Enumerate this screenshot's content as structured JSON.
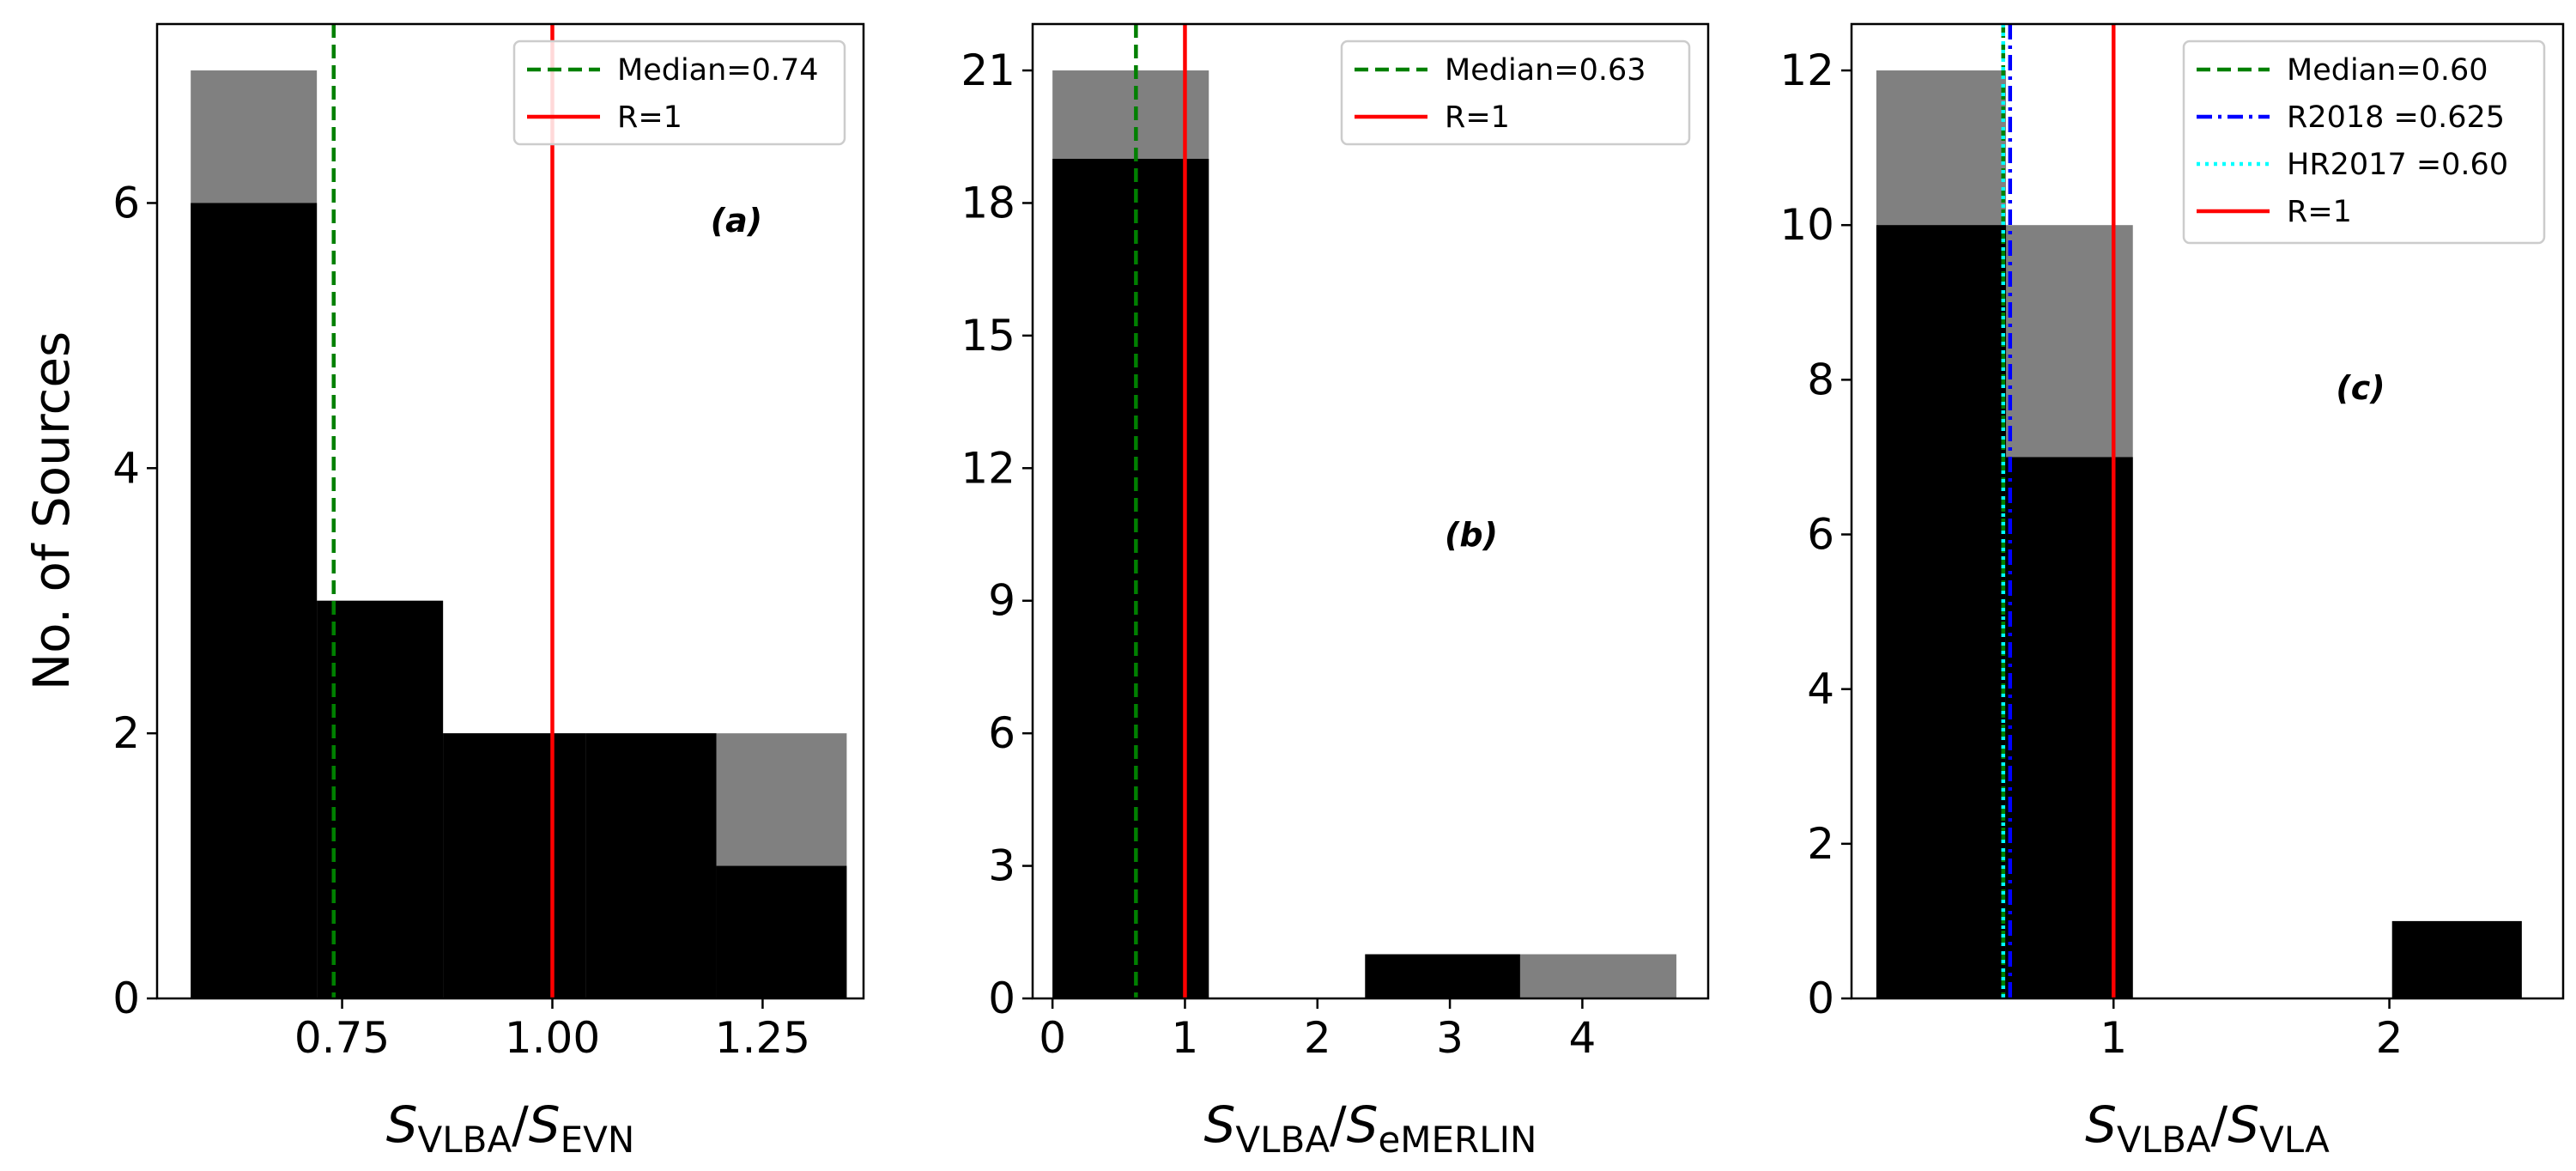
{
  "figure": {
    "ylabel": "No. of Sources"
  },
  "chart_data": [
    {
      "type": "bar",
      "panel_label": "(a)",
      "xlabel": {
        "main": "S",
        "sub1": "VLBA",
        "slash": "/",
        "main2": "S",
        "sub2": "EVN"
      },
      "xlim": [
        0.53,
        1.37
      ],
      "ylim": [
        0,
        7.35
      ],
      "xticks": [
        0.75,
        1.0,
        1.25
      ],
      "xtick_labels": [
        "0.75",
        "1.00",
        "1.25"
      ],
      "yticks": [
        0,
        2,
        4,
        6
      ],
      "ytick_labels": [
        "0",
        "2",
        "4",
        "6"
      ],
      "bins": [
        [
          0.57,
          0.72
        ],
        [
          0.72,
          0.87
        ],
        [
          0.87,
          1.04
        ],
        [
          1.04,
          1.195
        ],
        [
          1.195,
          1.35
        ]
      ],
      "series": [
        {
          "name": "",
          "color": "#808080",
          "values": [
            7,
            3,
            2,
            2,
            2
          ]
        },
        {
          "name": "",
          "color": "#000000",
          "values": [
            6,
            3,
            2,
            2,
            1
          ]
        }
      ],
      "vlines": [
        {
          "x": 0.74,
          "label": "Median=0.74",
          "color": "#008000",
          "style": "dashed"
        },
        {
          "x": 1.0,
          "label": "R=1",
          "color": "#ff0000",
          "style": "solid"
        }
      ],
      "legend": "top-right",
      "grid": false
    },
    {
      "type": "bar",
      "panel_label": "(b)",
      "xlabel": {
        "main": "S",
        "sub1": "VLBA",
        "slash": "/",
        "main2": "S",
        "sub2": "eMERLIN"
      },
      "xlim": [
        -0.15,
        4.95
      ],
      "ylim": [
        0,
        22.05
      ],
      "xticks": [
        0,
        1,
        2,
        3,
        4
      ],
      "xtick_labels": [
        "0",
        "1",
        "2",
        "3",
        "4"
      ],
      "yticks": [
        0,
        3,
        6,
        9,
        12,
        15,
        18,
        21
      ],
      "ytick_labels": [
        "0",
        "3",
        "6",
        "9",
        "12",
        "15",
        "18",
        "21"
      ],
      "bins": [
        [
          0.0,
          1.18
        ],
        [
          1.18,
          2.36
        ],
        [
          2.36,
          3.53
        ],
        [
          3.53,
          4.71
        ]
      ],
      "series": [
        {
          "name": "",
          "color": "#808080",
          "values": [
            21,
            0,
            1,
            1
          ]
        },
        {
          "name": "",
          "color": "#000000",
          "values": [
            19,
            0,
            1,
            0
          ]
        }
      ],
      "vlines": [
        {
          "x": 0.63,
          "label": "Median=0.63",
          "color": "#008000",
          "style": "dashed"
        },
        {
          "x": 1.0,
          "label": "R=1",
          "color": "#ff0000",
          "style": "solid"
        }
      ],
      "legend": "top-right",
      "grid": false
    },
    {
      "type": "bar",
      "panel_label": "(c)",
      "xlabel": {
        "main": "S",
        "sub1": "VLBA",
        "slash": "/",
        "main2": "S",
        "sub2": "VLA"
      },
      "xlim": [
        0.05,
        2.63
      ],
      "ylim": [
        0,
        12.6
      ],
      "xticks": [
        1,
        2
      ],
      "xtick_labels": [
        "1",
        "2"
      ],
      "yticks": [
        0,
        2,
        4,
        6,
        8,
        10,
        12
      ],
      "ytick_labels": [
        "0",
        "2",
        "4",
        "6",
        "8",
        "10",
        "12"
      ],
      "bins": [
        [
          0.14,
          0.61
        ],
        [
          0.61,
          1.07
        ],
        [
          1.07,
          1.54
        ],
        [
          1.54,
          2.01
        ],
        [
          2.01,
          2.48
        ]
      ],
      "series": [
        {
          "name": "",
          "color": "#808080",
          "values": [
            12,
            10,
            0,
            0,
            1
          ]
        },
        {
          "name": "",
          "color": "#000000",
          "values": [
            10,
            7,
            0,
            0,
            1
          ]
        }
      ],
      "vlines": [
        {
          "x": 0.6,
          "label": "Median=0.60",
          "color": "#008000",
          "style": "dashed"
        },
        {
          "x": 0.625,
          "label": "R2018 =0.625",
          "color": "#0000ff",
          "style": "dashdot"
        },
        {
          "x": 0.6,
          "label": "HR2017 =0.60",
          "color": "#00ffff",
          "style": "dotted"
        },
        {
          "x": 1.0,
          "label": "R=1",
          "color": "#ff0000",
          "style": "solid"
        }
      ],
      "legend": "top-right",
      "grid": false
    }
  ]
}
